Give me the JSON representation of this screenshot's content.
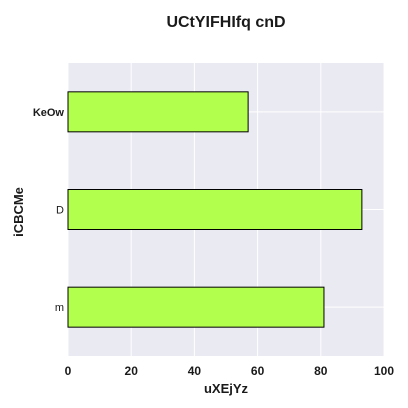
{
  "chart_data": {
    "type": "bar",
    "orientation": "horizontal",
    "title": "UCtYIFHIfq cnD",
    "xlabel": "uXEjYz",
    "ylabel": "iCBCMe",
    "categories": [
      "KeOw",
      "D",
      "m"
    ],
    "values": [
      57,
      93,
      81
    ],
    "xlim": [
      0,
      100
    ],
    "xticks": [
      0,
      20,
      40,
      60,
      80,
      100
    ],
    "grid": true,
    "bar_color": "#b3ff4d",
    "bar_edge_color": "#000000",
    "plot_background": "#eaeaf2"
  }
}
